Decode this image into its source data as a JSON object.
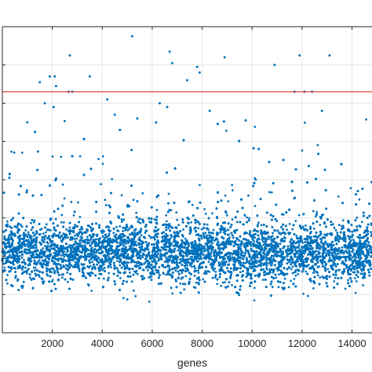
{
  "chart_data": {
    "type": "scatter",
    "title": "",
    "xlabel": "genes",
    "ylabel": "",
    "xlim": [
      0,
      14800
    ],
    "ylim": [
      0,
      8
    ],
    "x_ticks": [
      2000,
      4000,
      6000,
      8000,
      10000,
      12000,
      14000
    ],
    "x_tick_labels": [
      "2000",
      "4000",
      "6000",
      "8000",
      "10000",
      "12000",
      "14000"
    ],
    "y_gridlines": [
      1,
      2,
      3,
      4,
      5,
      6,
      7
    ],
    "grid": true,
    "series": [
      {
        "color": "#0072BD",
        "marker": "dot",
        "n_points": 14800,
        "bulk_center": 2.1,
        "bulk_spread": 0.38,
        "outliers": [
          {
            "x": 5200,
            "y": 7.75
          },
          {
            "x": 2700,
            "y": 7.25
          },
          {
            "x": 6700,
            "y": 7.35
          },
          {
            "x": 8900,
            "y": 7.2
          },
          {
            "x": 11900,
            "y": 7.25
          },
          {
            "x": 13100,
            "y": 7.25
          },
          {
            "x": 10900,
            "y": 7.0
          },
          {
            "x": 7800,
            "y": 6.95
          },
          {
            "x": 7900,
            "y": 6.8
          },
          {
            "x": 6800,
            "y": 7.05
          },
          {
            "x": 7400,
            "y": 6.6
          },
          {
            "x": 1900,
            "y": 6.7
          },
          {
            "x": 2100,
            "y": 6.7
          },
          {
            "x": 1500,
            "y": 6.55
          },
          {
            "x": 3500,
            "y": 6.7
          },
          {
            "x": 2150,
            "y": 6.45
          },
          {
            "x": 2800,
            "y": 6.3
          },
          {
            "x": 2650,
            "y": 6.3
          },
          {
            "x": 11700,
            "y": 6.3
          },
          {
            "x": 12400,
            "y": 6.3
          },
          {
            "x": 12100,
            "y": 6.3
          },
          {
            "x": 4200,
            "y": 6.1
          },
          {
            "x": 1700,
            "y": 6.0
          },
          {
            "x": 2050,
            "y": 5.9
          },
          {
            "x": 4500,
            "y": 5.7
          },
          {
            "x": 5400,
            "y": 5.6
          },
          {
            "x": 6600,
            "y": 5.9
          },
          {
            "x": 8300,
            "y": 5.8
          },
          {
            "x": 12800,
            "y": 5.8
          },
          {
            "x": 6300,
            "y": 6.0
          },
          {
            "x": 1000,
            "y": 5.5
          }
        ],
        "reference_line": {
          "y": 6.3,
          "color": "#e0403a"
        }
      }
    ]
  }
}
